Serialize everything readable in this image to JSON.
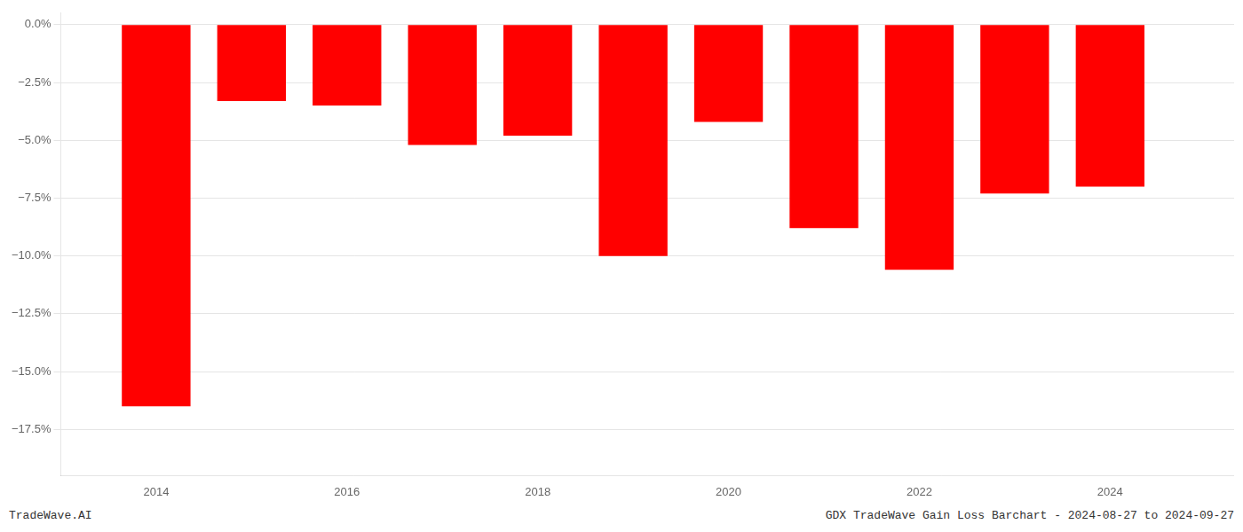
{
  "chart_data": {
    "type": "bar",
    "x": [
      2014,
      2015,
      2016,
      2017,
      2018,
      2019,
      2020,
      2021,
      2022,
      2023,
      2024
    ],
    "values": [
      -16.5,
      -3.3,
      -3.5,
      -5.2,
      -4.8,
      -10.0,
      -4.2,
      -8.8,
      -10.6,
      -7.3,
      -7.0
    ],
    "color": "#ff0000",
    "xlim": [
      2013.0,
      2025.3
    ],
    "xticks": [
      2014,
      2016,
      2018,
      2020,
      2022,
      2024
    ],
    "ylim": [
      -19.5,
      0.5
    ],
    "yticks": [
      {
        "value": 0.0,
        "label": "0.0%"
      },
      {
        "value": -2.5,
        "label": "−2.5%"
      },
      {
        "value": -5.0,
        "label": "−5.0%"
      },
      {
        "value": -7.5,
        "label": "−7.5%"
      },
      {
        "value": -10.0,
        "label": "−10.0%"
      },
      {
        "value": -12.5,
        "label": "−12.5%"
      },
      {
        "value": -15.0,
        "label": "−15.0%"
      },
      {
        "value": -17.5,
        "label": "−17.5%"
      }
    ],
    "grid": "y",
    "annotations": [
      "TradeWave.AI",
      "GDX TradeWave Gain Loss Barchart - 2024-08-27 to 2024-09-27"
    ]
  }
}
